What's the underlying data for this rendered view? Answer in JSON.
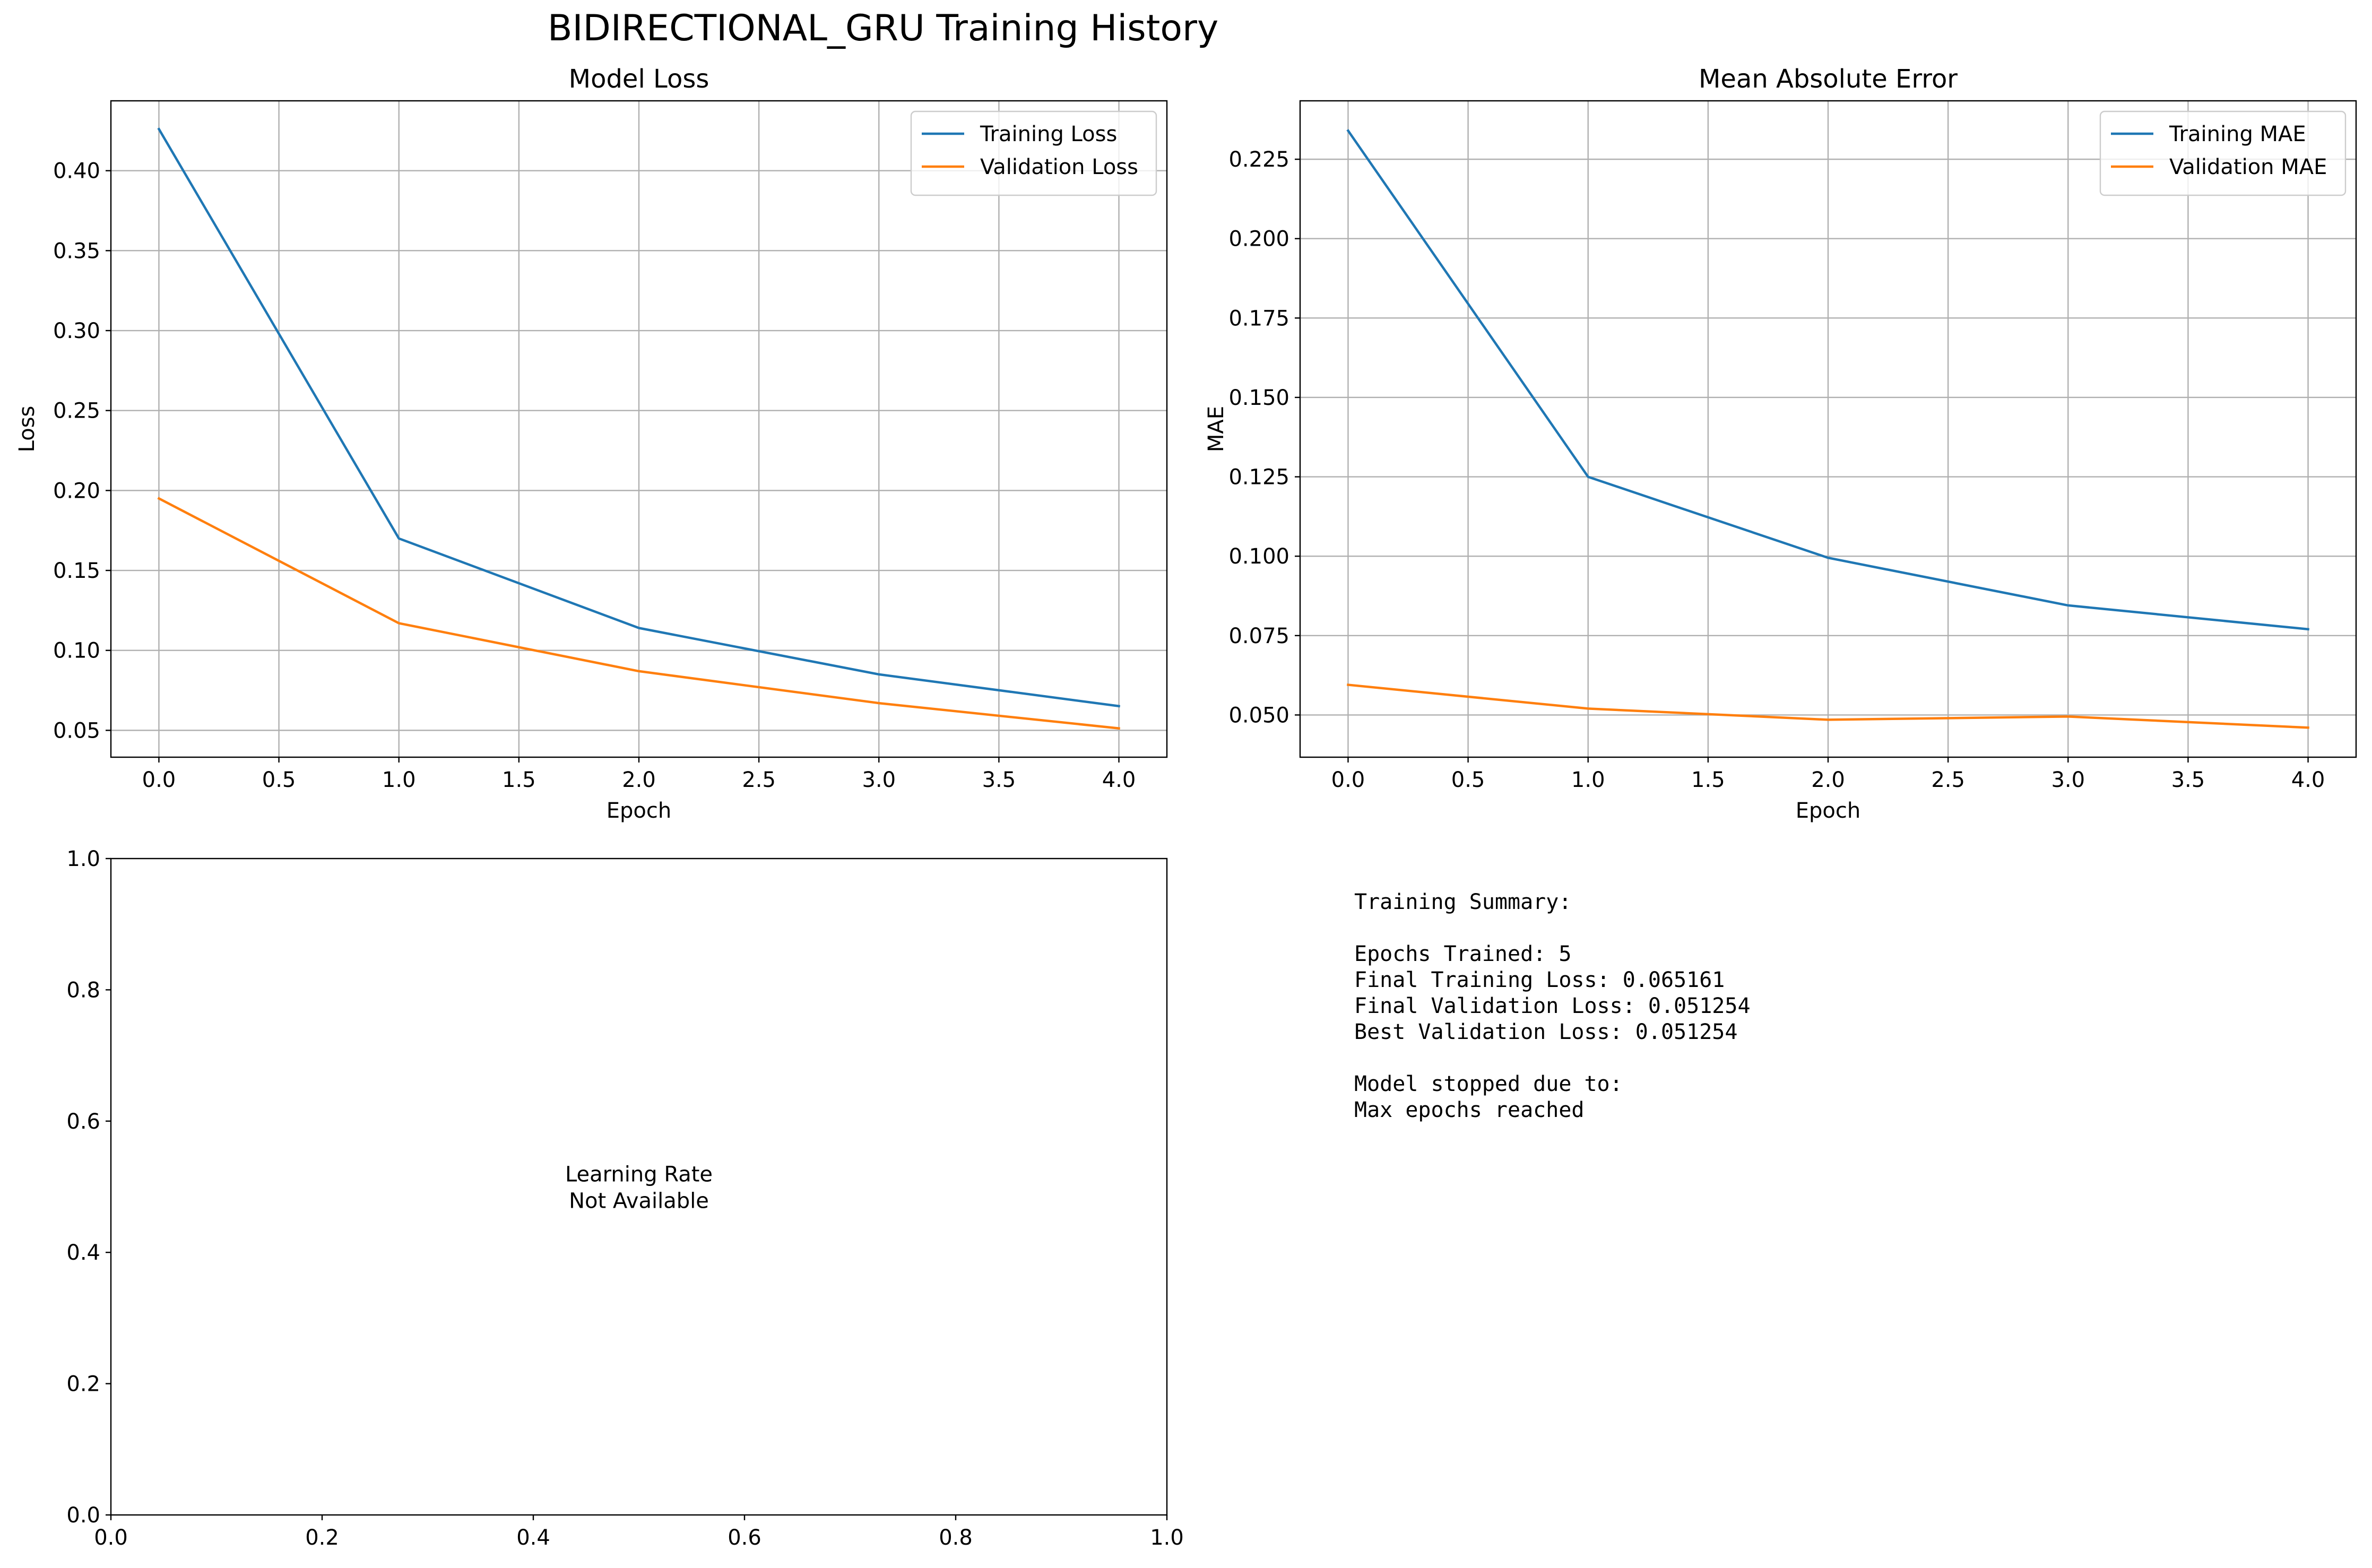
{
  "suptitle": "BIDIRECTIONAL_GRU Training History",
  "colors": {
    "series1": "#1f77b4",
    "series2": "#ff7f0e",
    "grid": "#b0b0b0",
    "axis": "#000000",
    "text": "#000000"
  },
  "chart_data": [
    {
      "id": "loss",
      "type": "line",
      "title": "Model Loss",
      "xlabel": "Epoch",
      "ylabel": "Loss",
      "xlim": [
        -0.2,
        4.2
      ],
      "ylim": [
        0.0332,
        0.4437
      ],
      "xticks": [
        0.0,
        0.5,
        1.0,
        1.5,
        2.0,
        2.5,
        3.0,
        3.5,
        4.0
      ],
      "xtick_labels": [
        "0.0",
        "0.5",
        "1.0",
        "1.5",
        "2.0",
        "2.5",
        "3.0",
        "3.5",
        "4.0"
      ],
      "yticks": [
        0.05,
        0.1,
        0.15,
        0.2,
        0.25,
        0.3,
        0.35,
        0.4
      ],
      "ytick_labels": [
        "0.05",
        "0.10",
        "0.15",
        "0.20",
        "0.25",
        "0.30",
        "0.35",
        "0.40"
      ],
      "grid": true,
      "legend": "upper-right",
      "x": [
        0,
        1,
        2,
        3,
        4
      ],
      "series": [
        {
          "name": "Training Loss",
          "values": [
            0.426,
            0.17,
            0.114,
            0.085,
            0.065161
          ]
        },
        {
          "name": "Validation Loss",
          "values": [
            0.195,
            0.117,
            0.087,
            0.067,
            0.051254
          ]
        }
      ]
    },
    {
      "id": "mae",
      "type": "line",
      "title": "Mean Absolute Error",
      "xlabel": "Epoch",
      "ylabel": "MAE",
      "xlim": [
        -0.2,
        4.2
      ],
      "ylim": [
        0.0367,
        0.2434
      ],
      "xticks": [
        0.0,
        0.5,
        1.0,
        1.5,
        2.0,
        2.5,
        3.0,
        3.5,
        4.0
      ],
      "xtick_labels": [
        "0.0",
        "0.5",
        "1.0",
        "1.5",
        "2.0",
        "2.5",
        "3.0",
        "3.5",
        "4.0"
      ],
      "yticks": [
        0.05,
        0.075,
        0.1,
        0.125,
        0.15,
        0.175,
        0.2,
        0.225
      ],
      "ytick_labels": [
        "0.050",
        "0.075",
        "0.100",
        "0.125",
        "0.150",
        "0.175",
        "0.200",
        "0.225"
      ],
      "grid": true,
      "legend": "upper-right",
      "x": [
        0,
        1,
        2,
        3,
        4
      ],
      "series": [
        {
          "name": "Training MAE",
          "values": [
            0.234,
            0.125,
            0.0995,
            0.0845,
            0.077
          ]
        },
        {
          "name": "Validation MAE",
          "values": [
            0.0595,
            0.052,
            0.0485,
            0.0495,
            0.046
          ]
        }
      ]
    },
    {
      "id": "lr",
      "type": "line",
      "title": "",
      "xlabel": "",
      "ylabel": "",
      "xlim": [
        0.0,
        1.0
      ],
      "ylim": [
        0.0,
        1.0
      ],
      "xticks": [
        0.0,
        0.2,
        0.4,
        0.6,
        0.8,
        1.0
      ],
      "xtick_labels": [
        "0.0",
        "0.2",
        "0.4",
        "0.6",
        "0.8",
        "1.0"
      ],
      "yticks": [
        0.0,
        0.2,
        0.4,
        0.6,
        0.8,
        1.0
      ],
      "ytick_labels": [
        "0.0",
        "0.2",
        "0.4",
        "0.6",
        "0.8",
        "1.0"
      ],
      "grid": false,
      "annotation": [
        "Learning Rate",
        "Not Available"
      ],
      "series": []
    }
  ],
  "summary": {
    "lines": [
      "Training Summary:",
      "",
      "Epochs Trained: 5",
      "Final Training Loss: 0.065161",
      "Final Validation Loss: 0.051254",
      "Best Validation Loss: 0.051254",
      "",
      "Model stopped due to:",
      "Max epochs reached"
    ]
  }
}
